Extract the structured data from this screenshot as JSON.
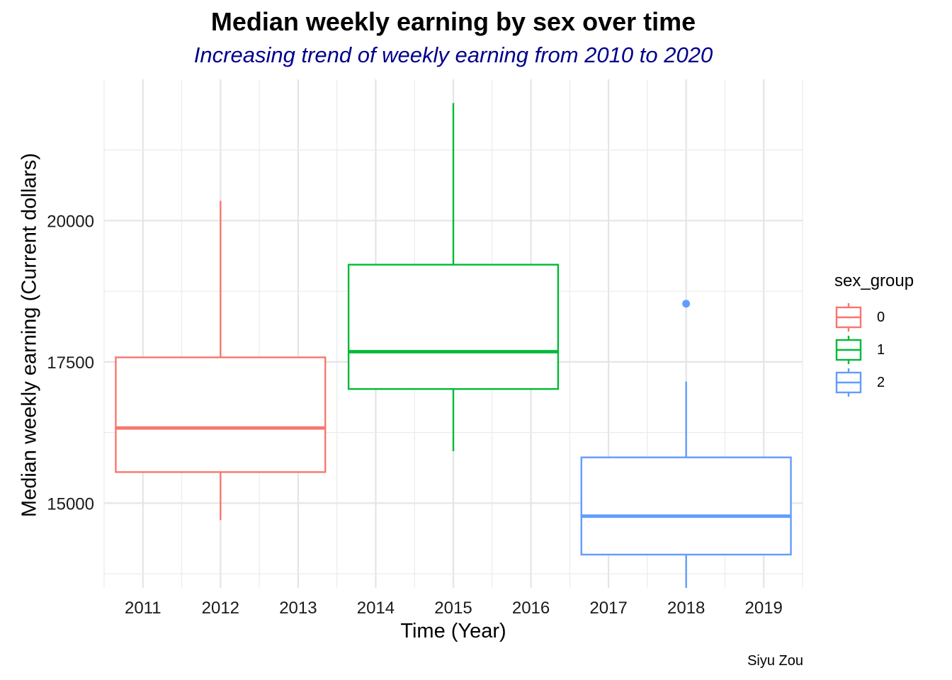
{
  "chart_data": {
    "type": "boxplot",
    "title": "Median weekly earning by sex over time",
    "subtitle": "Increasing trend of weekly earning from 2010 to 2020",
    "xlabel": "Time (Year)",
    "ylabel": "Median weekly earning (Current dollars)",
    "caption": "Siyu Zou",
    "x_ticks": [
      "2011",
      "2012",
      "2013",
      "2014",
      "2015",
      "2016",
      "2017",
      "2018",
      "2019"
    ],
    "x_range": [
      2010.5,
      2019.5
    ],
    "y_ticks": [
      15000,
      17500,
      20000
    ],
    "ylim": [
      13500,
      22500
    ],
    "grid": true,
    "legend": {
      "title": "sex_group",
      "position": "right",
      "entries": [
        {
          "label": "0",
          "color": "#F8766D"
        },
        {
          "label": "1",
          "color": "#00BA38"
        },
        {
          "label": "2",
          "color": "#619CFF"
        }
      ]
    },
    "boxes": [
      {
        "group": "0",
        "center_year": 2012,
        "x_span": [
          2010.65,
          2013.35
        ],
        "min": 14700,
        "q1": 15550,
        "median": 16330,
        "q3": 17580,
        "max": 20350,
        "outliers": [],
        "color": "#F8766D"
      },
      {
        "group": "1",
        "center_year": 2015,
        "x_span": [
          2013.65,
          2016.35
        ],
        "min": 15920,
        "q1": 17020,
        "median": 17680,
        "q3": 19220,
        "max": 22080,
        "outliers": [],
        "color": "#00BA38"
      },
      {
        "group": "2",
        "center_year": 2018,
        "x_span": [
          2016.65,
          2019.35
        ],
        "min": 13500,
        "q1": 14090,
        "median": 14770,
        "q3": 15810,
        "max": 17150,
        "outliers": [
          18530
        ],
        "color": "#619CFF"
      }
    ]
  }
}
